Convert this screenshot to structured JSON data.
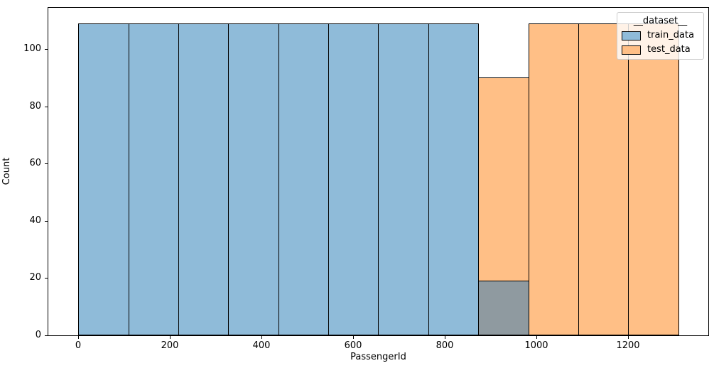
{
  "chart": {
    "xlabel": "PassengerId",
    "ylabel": "Count",
    "x_ticks": [
      0,
      200,
      400,
      600,
      800,
      1000,
      1200
    ],
    "y_ticks": [
      0,
      20,
      40,
      60,
      80,
      100
    ],
    "xlim": [
      -64.4,
      1374.4
    ],
    "ylim": [
      0,
      114.45
    ],
    "background_color": "#ffffff",
    "grid": false
  },
  "legend": {
    "title": "__dataset__",
    "position": "upper right",
    "entries": [
      {
        "label": "train_data",
        "color": "#8fbbd9"
      },
      {
        "label": "test_data",
        "color": "#ffbf86"
      }
    ]
  },
  "chart_data": {
    "type": "bar",
    "subtype": "histogram",
    "title": "",
    "xlabel": "PassengerId",
    "ylabel": "Count",
    "xlim": [
      -64.4,
      1374.4
    ],
    "ylim": [
      0,
      114.45
    ],
    "bin_edges": [
      1,
      110,
      219,
      328,
      437,
      546,
      655,
      764,
      873,
      982,
      1091,
      1200,
      1309
    ],
    "series": [
      {
        "name": "train_data",
        "color": "#8fbbd9",
        "values": [
          109,
          109,
          109,
          109,
          109,
          109,
          109,
          109,
          19,
          0,
          0,
          0
        ]
      },
      {
        "name": "test_data",
        "color": "#ffbf86",
        "values": [
          0,
          0,
          0,
          0,
          0,
          0,
          0,
          0,
          90,
          109,
          109,
          109
        ]
      }
    ],
    "overlap_color": "#8f9aa0",
    "edge_color": "#000000",
    "legend_position": "upper right"
  }
}
